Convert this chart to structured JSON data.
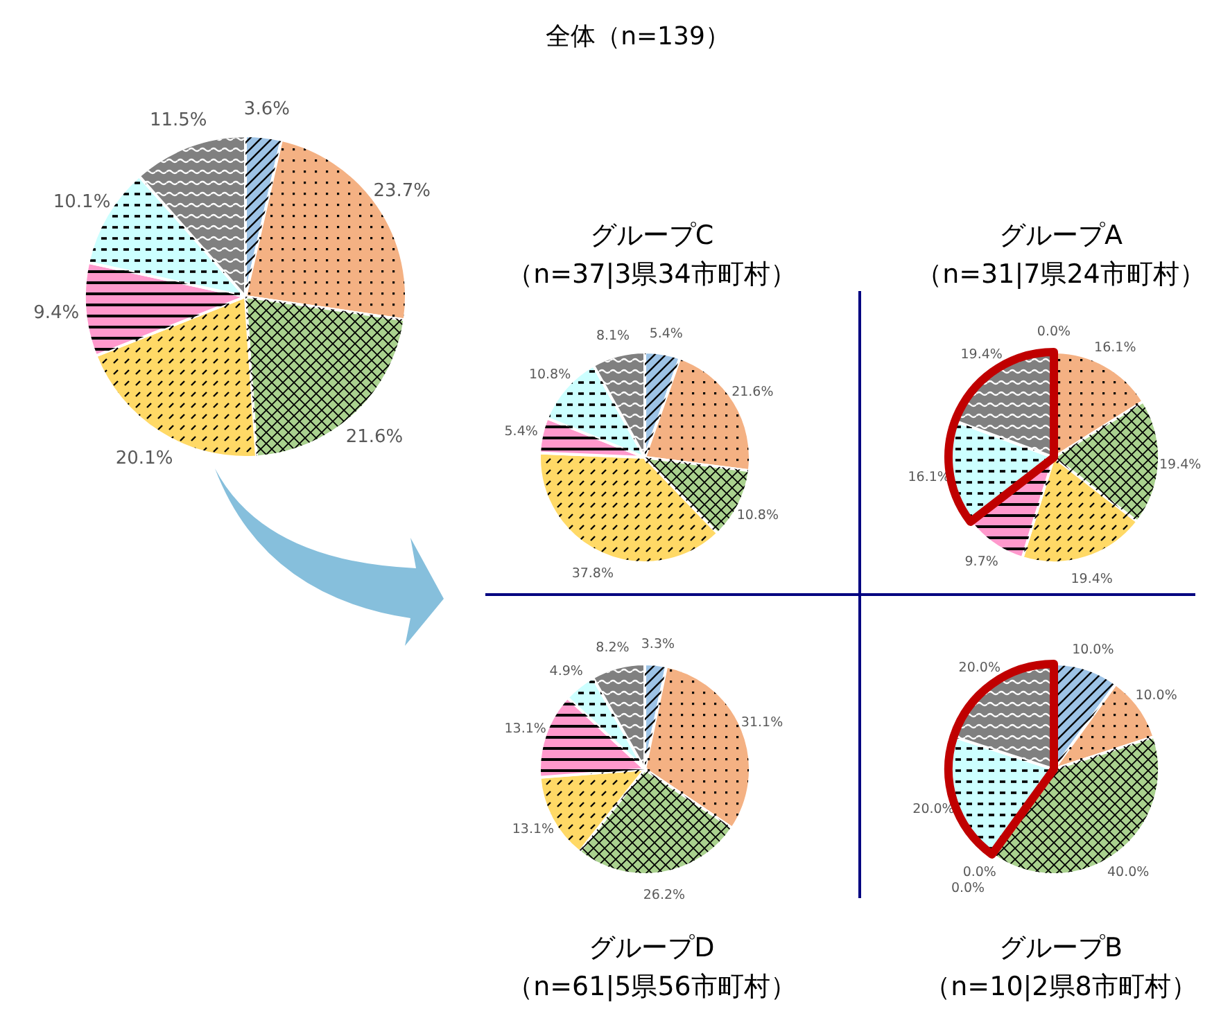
{
  "chart_data": [
    {
      "type": "pie",
      "title": "全体（n=139）",
      "categories": [
        null,
        null,
        null,
        null,
        null,
        null,
        null
      ],
      "values": [
        3.6,
        23.7,
        21.6,
        20.1,
        9.4,
        10.1,
        11.5
      ],
      "value_labels": [
        "3.6%",
        "23.7%",
        "21.6%",
        "20.1%",
        "9.4%",
        "10.1%",
        "11.5%"
      ],
      "colors": [
        "#9dc3e6",
        "#f4b183",
        "#a9d18e",
        "#ffd966",
        "#ff99cc",
        "#ccffff",
        "#808080"
      ]
    },
    {
      "type": "pie",
      "title": "グループC",
      "subtitle": "（n=37|3県34市町村）",
      "categories": [
        null,
        null,
        null,
        null,
        null,
        null,
        null
      ],
      "values": [
        5.4,
        21.6,
        10.8,
        37.8,
        5.4,
        10.8,
        8.1
      ],
      "value_labels": [
        "5.4%",
        "21.6%",
        "10.8%",
        "37.8%",
        "5.4%",
        "10.8%",
        "8.1%"
      ],
      "colors": [
        "#9dc3e6",
        "#f4b183",
        "#a9d18e",
        "#ffd966",
        "#ff99cc",
        "#ccffff",
        "#808080"
      ]
    },
    {
      "type": "pie",
      "title": "グループA",
      "subtitle": "（n=31|7県24市町村）",
      "categories": [
        null,
        null,
        null,
        null,
        null,
        null,
        null
      ],
      "values": [
        0.0,
        16.1,
        19.4,
        19.4,
        9.7,
        16.1,
        19.4
      ],
      "value_labels": [
        "0.0%",
        "16.1%",
        "19.4%",
        "19.4%",
        "9.7%",
        "16.1%",
        "19.4%"
      ],
      "colors": [
        "#9dc3e6",
        "#f4b183",
        "#a9d18e",
        "#ffd966",
        "#ff99cc",
        "#ccffff",
        "#808080"
      ]
    },
    {
      "type": "pie",
      "title": "グループD",
      "subtitle": "（n=61|5県56市町村）",
      "categories": [
        null,
        null,
        null,
        null,
        null,
        null,
        null
      ],
      "values": [
        3.3,
        31.1,
        26.2,
        13.1,
        13.1,
        4.9,
        8.2
      ],
      "value_labels": [
        "3.3%",
        "31.1%",
        "26.2%",
        "13.1%",
        "13.1%",
        "4.9%",
        "8.2%"
      ],
      "colors": [
        "#9dc3e6",
        "#f4b183",
        "#a9d18e",
        "#ffd966",
        "#ff99cc",
        "#ccffff",
        "#808080"
      ]
    },
    {
      "type": "pie",
      "title": "グループB",
      "subtitle": "（n=10|2県8市町村）",
      "categories": [
        null,
        null,
        null,
        null,
        null,
        null,
        null
      ],
      "values": [
        10.0,
        10.0,
        40.0,
        0.0,
        0.0,
        20.0,
        20.0
      ],
      "value_labels": [
        "10.0%",
        "10.0%",
        "40.0%",
        "0.0%",
        "0.0%",
        "20.0%",
        "20.0%"
      ],
      "colors": [
        "#9dc3e6",
        "#f4b183",
        "#a9d18e",
        "#ffd966",
        "#ff99cc",
        "#ccffff",
        "#808080"
      ]
    }
  ]
}
